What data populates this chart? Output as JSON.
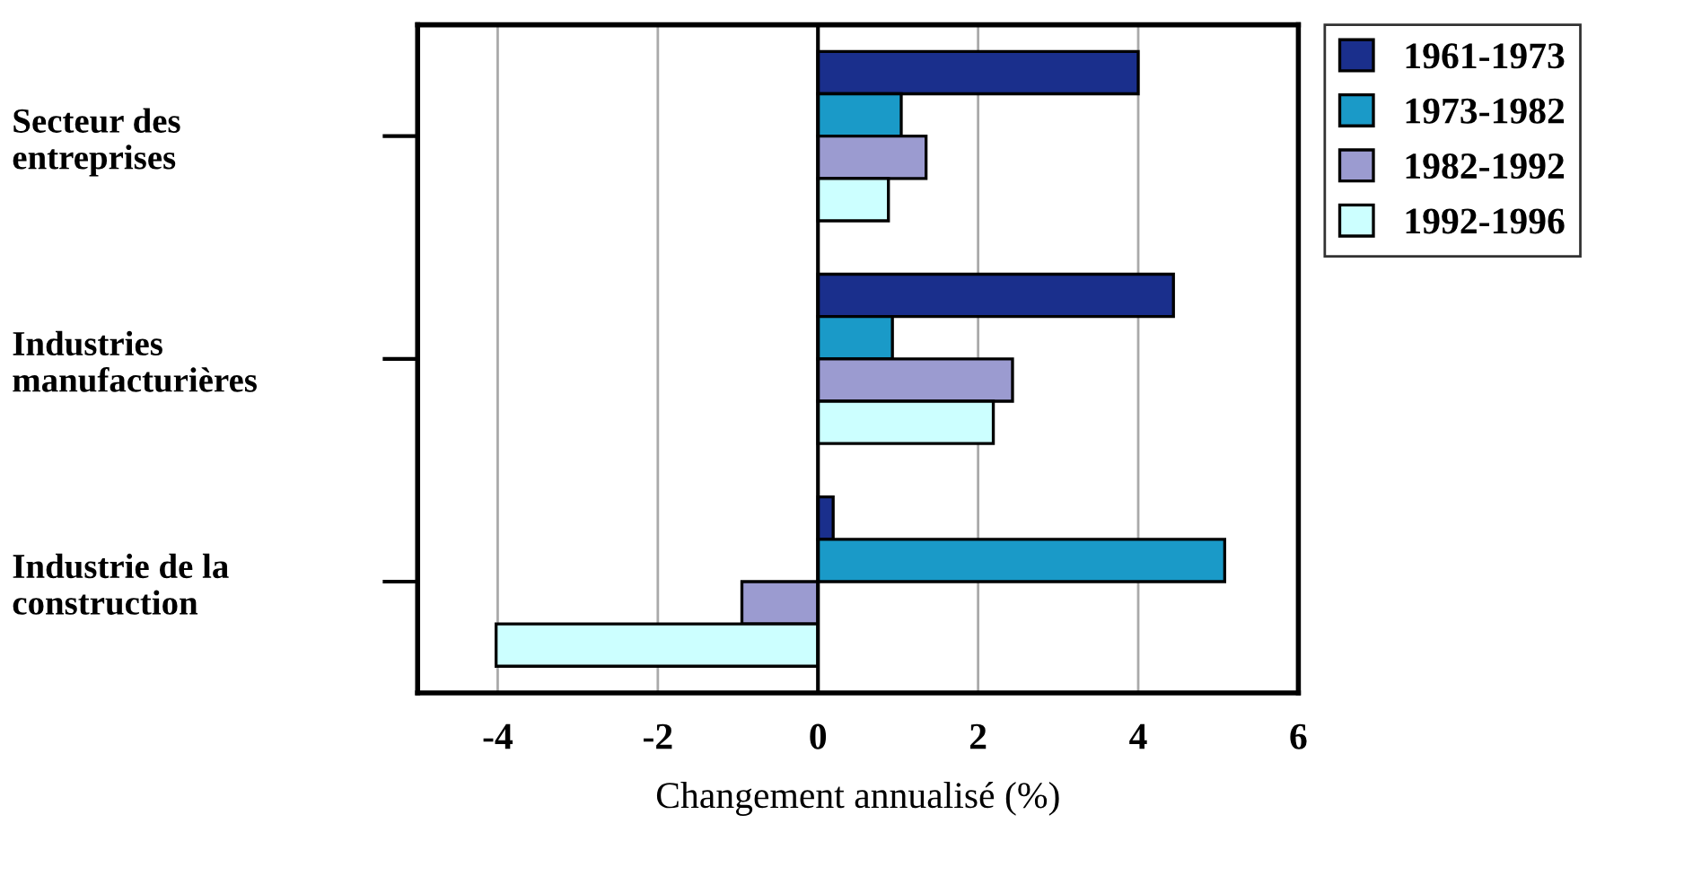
{
  "chart_data": {
    "type": "bar",
    "orientation": "horizontal",
    "xlabel": "Changement annualisé (%)",
    "categories": [
      "Secteur des\nentreprises",
      "Industries\nmanufacturières",
      "Industrie de la\nconstruction"
    ],
    "series": [
      {
        "name": "1961-1973",
        "color": "#1a2f8c",
        "values": [
          4.0,
          4.44,
          0.19
        ]
      },
      {
        "name": "1973-1982",
        "color": "#1a9ac8",
        "values": [
          1.04,
          0.93,
          5.08
        ]
      },
      {
        "name": "1982-1992",
        "color": "#9b9bd0",
        "values": [
          1.35,
          2.43,
          -0.95
        ]
      },
      {
        "name": "1992-1996",
        "color": "#ccffff",
        "values": [
          0.88,
          2.19,
          -4.02
        ]
      }
    ],
    "xlim": [
      -5,
      6
    ],
    "xticks": [
      -4,
      -2,
      0,
      2,
      4,
      6
    ],
    "grid": "x",
    "legend": "top right"
  }
}
